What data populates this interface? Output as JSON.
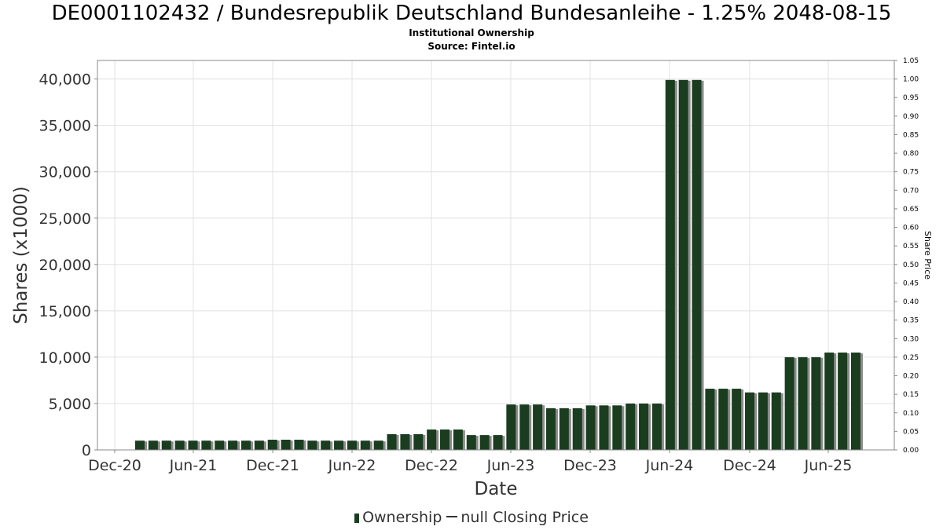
{
  "header": {
    "title": "DE0001102432 / Bundesrepublik Deutschland Bundesanleihe - 1.25% 2048-08-15",
    "subtitle1": "Institutional Ownership",
    "subtitle2": "Source: Fintel.io"
  },
  "legend": {
    "ownership": "Ownership",
    "price": "null Closing Price"
  },
  "colors": {
    "bar": "#1a3d1f",
    "bar_shadow": "#8c8c8c",
    "grid": "#e0e0e0",
    "axis": "#888888"
  },
  "chart_data": {
    "type": "bar",
    "title": "DE0001102432 / Bundesrepublik Deutschland Bundesanleihe - 1.25% 2048-08-15",
    "xlabel": "Date",
    "ylabel": "Shares (x1000)",
    "y2label": "Share Price",
    "ylim": [
      0,
      42000
    ],
    "y2lim": [
      0,
      1.05
    ],
    "y_ticks": [
      "0",
      "5,000",
      "10,000",
      "15,000",
      "20,000",
      "25,000",
      "30,000",
      "35,000",
      "40,000"
    ],
    "y_tick_values": [
      0,
      5000,
      10000,
      15000,
      20000,
      25000,
      30000,
      35000,
      40000
    ],
    "y2_ticks": [
      "0.00",
      "0.05",
      "0.10",
      "0.15",
      "0.20",
      "0.25",
      "0.30",
      "0.35",
      "0.40",
      "0.45",
      "0.50",
      "0.55",
      "0.60",
      "0.65",
      "0.70",
      "0.75",
      "0.80",
      "0.85",
      "0.90",
      "0.95",
      "1.00",
      "1.05"
    ],
    "x_ticks": [
      "Dec-20",
      "Jun-21",
      "Dec-21",
      "Jun-22",
      "Dec-22",
      "Jun-23",
      "Dec-23",
      "Jun-24",
      "Dec-24",
      "Jun-25"
    ],
    "grid": true,
    "legend_position": "bottom",
    "series": [
      {
        "name": "Ownership",
        "values": [
          1000,
          1000,
          1000,
          1000,
          1000,
          1000,
          1000,
          1000,
          1000,
          1000,
          1100,
          1100,
          1100,
          1000,
          1000,
          1000,
          1000,
          1000,
          1000,
          1700,
          1700,
          1700,
          2200,
          2200,
          2200,
          1600,
          1600,
          1600,
          4900,
          4900,
          4900,
          4500,
          4500,
          4500,
          4800,
          4800,
          4800,
          5000,
          5000,
          5000,
          39900,
          39900,
          39900,
          6600,
          6600,
          6600,
          6200,
          6200,
          6200,
          10000,
          10000,
          10000,
          10500,
          10500,
          10500
        ]
      }
    ]
  }
}
